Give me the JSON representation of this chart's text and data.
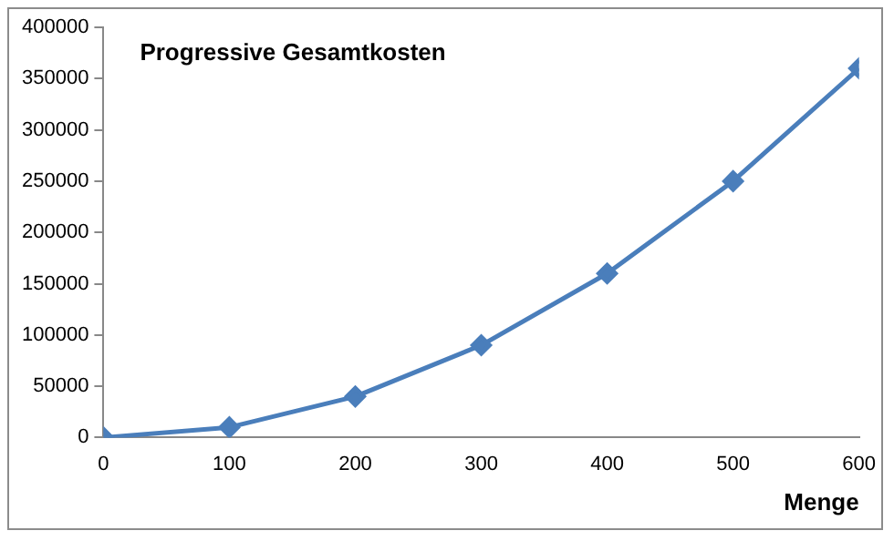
{
  "chart_data": {
    "type": "line",
    "title": "Progressive Gesamtkosten",
    "xlabel": "Menge",
    "x": [
      0,
      100,
      200,
      300,
      400,
      500,
      600
    ],
    "series": [
      {
        "color": "#4a7ebb",
        "values": [
          0,
          10000,
          40000,
          90000,
          160000,
          250000,
          360000
        ]
      }
    ],
    "xlim": [
      0,
      600
    ],
    "xticks": [
      0,
      100,
      200,
      300,
      400,
      500,
      600
    ],
    "ylim": [
      0,
      400000
    ],
    "yticks": [
      0,
      50000,
      100000,
      150000,
      200000,
      250000,
      300000,
      350000,
      400000
    ],
    "grid": false,
    "legend": false,
    "marker": "diamond",
    "line_style": "solid"
  }
}
